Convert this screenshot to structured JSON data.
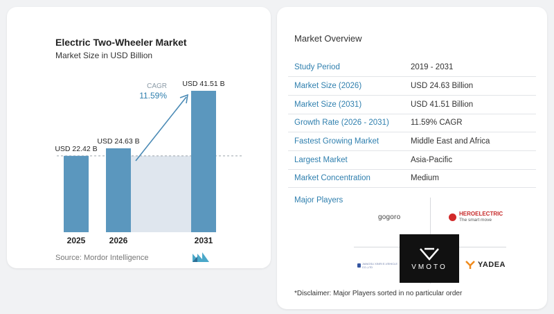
{
  "chart_title": "Electric Two-Wheeler Market",
  "chart_subtitle": "Market Size in USD Billion",
  "chart_data": {
    "type": "bar",
    "categories": [
      "2025",
      "2026",
      "2031"
    ],
    "values": [
      22.42,
      24.63,
      41.51
    ],
    "value_labels": [
      "USD 22.42 B",
      "USD 24.63 B",
      "USD 41.51 B"
    ],
    "cagr_label": "CAGR",
    "cagr_value": "11.59%",
    "bar_color": "#5b97be",
    "fill_color": "#dfe6ee",
    "ylim": [
      0,
      41.51
    ],
    "grid": false
  },
  "source": "Source: Mordor Intelligence",
  "overview": {
    "title": "Market Overview",
    "rows": [
      {
        "label": "Study Period",
        "value": "2019 - 2031"
      },
      {
        "label": "Market Size (2026)",
        "value": "USD 24.63 Billion"
      },
      {
        "label": "Market Size (2031)",
        "value": "USD 41.51 Billion"
      },
      {
        "label": "Growth Rate (2026 - 2031)",
        "value": "11.59% CAGR"
      },
      {
        "label": "Fastest Growing Market",
        "value": "Middle East and Africa"
      },
      {
        "label": "Largest Market",
        "value": "Asia-Pacific"
      },
      {
        "label": "Market Concentration",
        "value": "Medium"
      }
    ]
  },
  "players": {
    "title": "Major Players",
    "gogoro": "gogoro",
    "hero_name": "HEROELECTRIC",
    "hero_tag": "The smart move",
    "vmoto": "VMOTO",
    "jiangsu": "JIANGSU XINRI E-VEHICLE CO.,LTD",
    "yadea": "YADEA"
  },
  "disclaimer": "*Disclaimer: Major Players sorted in no particular order",
  "colors": {
    "accent": "#2f7fae",
    "bar": "#5b97be",
    "arrow": "#4a8ab5"
  }
}
